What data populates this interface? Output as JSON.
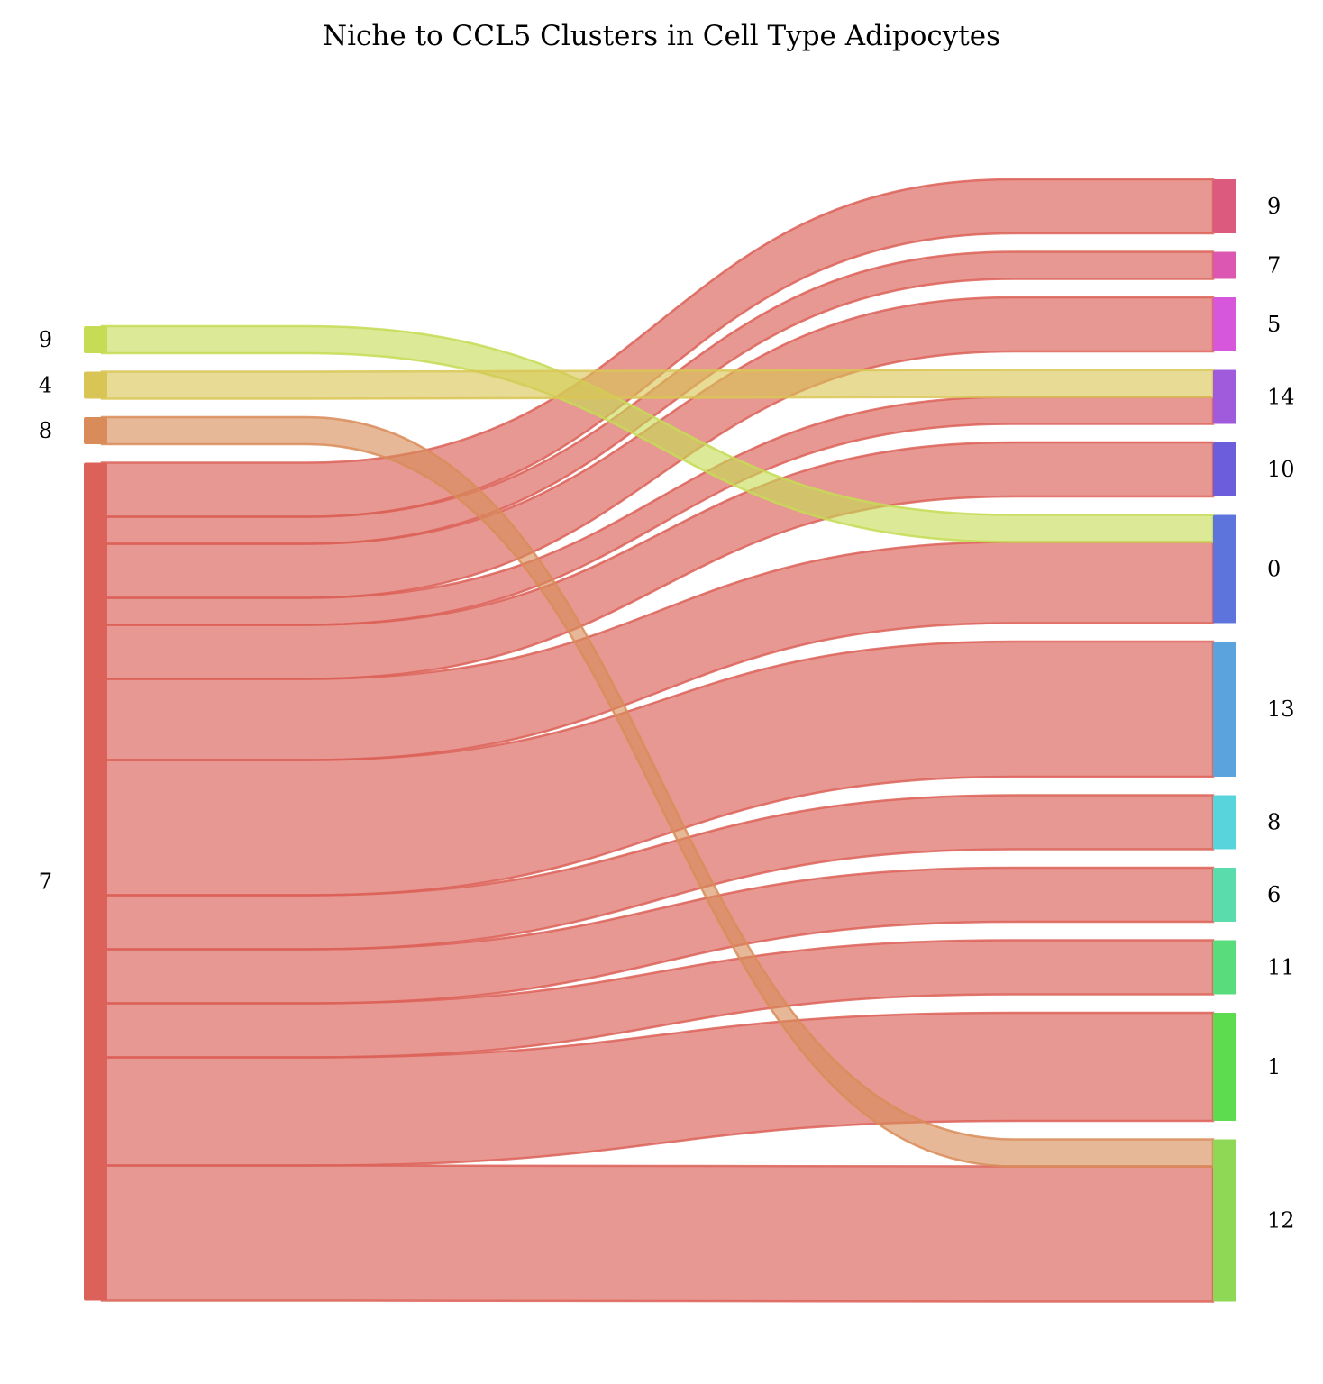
{
  "title": "Niche to CCL5 Clusters in Cell Type Adipocytes",
  "chart_data": {
    "type": "sankey",
    "title": "Niche to CCL5 Clusters in Cell Type Adipocytes",
    "sources": [
      {
        "id": "9",
        "label": "9",
        "color": "#c6dc55",
        "value": 1
      },
      {
        "id": "4",
        "label": "4",
        "color": "#d9c555",
        "value": 1
      },
      {
        "id": "8",
        "label": "8",
        "color": "#d98c59",
        "value": 1
      },
      {
        "id": "7",
        "label": "7",
        "color": "#dc6158",
        "value": 31
      }
    ],
    "targets": [
      {
        "id": "9",
        "label": "9",
        "color": "#dc5a7d",
        "value": 2
      },
      {
        "id": "7",
        "label": "7",
        "color": "#dc57b2",
        "value": 1
      },
      {
        "id": "5",
        "label": "5",
        "color": "#d657dc",
        "value": 2
      },
      {
        "id": "14",
        "label": "14",
        "color": "#a05adc",
        "value": 2
      },
      {
        "id": "10",
        "label": "10",
        "color": "#6c5ddc",
        "value": 2
      },
      {
        "id": "0",
        "label": "0",
        "color": "#5c74dc",
        "value": 4
      },
      {
        "id": "13",
        "label": "13",
        "color": "#5ba3dc",
        "value": 5
      },
      {
        "id": "8",
        "label": "8",
        "color": "#58d4dc",
        "value": 2
      },
      {
        "id": "6",
        "label": "6",
        "color": "#5adcad",
        "value": 2
      },
      {
        "id": "11",
        "label": "11",
        "color": "#59dc7b",
        "value": 2
      },
      {
        "id": "1",
        "label": "1",
        "color": "#5edc50",
        "value": 4
      },
      {
        "id": "12",
        "label": "12",
        "color": "#8ed855",
        "value": 6
      }
    ],
    "links": [
      {
        "source": "7",
        "target": "9",
        "value": 2
      },
      {
        "source": "7",
        "target": "7",
        "value": 1
      },
      {
        "source": "7",
        "target": "5",
        "value": 2
      },
      {
        "source": "7",
        "target": "14",
        "value": 1
      },
      {
        "source": "7",
        "target": "10",
        "value": 2
      },
      {
        "source": "7",
        "target": "0",
        "value": 3
      },
      {
        "source": "7",
        "target": "13",
        "value": 5
      },
      {
        "source": "7",
        "target": "8",
        "value": 2
      },
      {
        "source": "7",
        "target": "6",
        "value": 2
      },
      {
        "source": "7",
        "target": "11",
        "value": 2
      },
      {
        "source": "7",
        "target": "1",
        "value": 4
      },
      {
        "source": "7",
        "target": "12",
        "value": 5
      },
      {
        "source": "9",
        "target": "0",
        "value": 1
      },
      {
        "source": "4",
        "target": "14",
        "value": 1
      },
      {
        "source": "8",
        "target": "12",
        "value": 1
      }
    ]
  }
}
